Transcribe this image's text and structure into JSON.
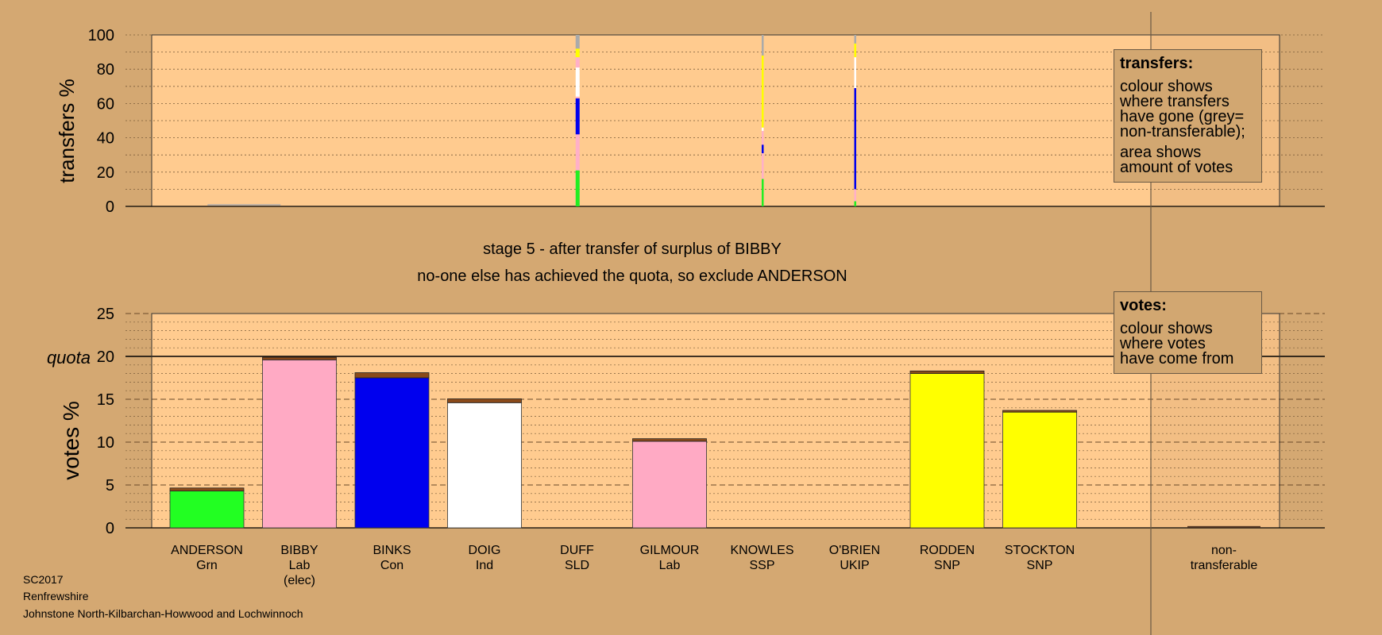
{
  "chart_data": [
    {
      "type": "bar",
      "panel": "transfers",
      "ylabel": "transfers %",
      "ylim": [
        0,
        100
      ],
      "yticks": [
        0,
        20,
        40,
        60,
        80,
        100
      ],
      "grid": "dotted every 10",
      "colors": {
        "Grn": "#22ee22",
        "Lab": "#ffb0c8",
        "Con": "#0000ee",
        "Ind": "#ffffff",
        "SNP": "#ffff00",
        "UKIP": "#9900cc",
        "non-transferable": "#a9a9a9"
      },
      "bars": [
        {
          "x": 0.895,
          "width": 0.045,
          "segments": [
            {
              "color": "#aaaaaa",
              "from": 0,
              "to": 1
            }
          ]
        },
        {
          "x": 4.5,
          "width": 0.03,
          "segments": [
            {
              "color": "#22ee22",
              "from": 0,
              "to": 21
            },
            {
              "color": "#ffb0c8",
              "from": 21,
              "to": 42
            },
            {
              "color": "#0000ee",
              "from": 42,
              "to": 63
            },
            {
              "color": "#ffb0c8",
              "from": 63,
              "to": 64
            },
            {
              "color": "#ffffff",
              "from": 64,
              "to": 81
            },
            {
              "color": "#ffb0c8",
              "from": 81,
              "to": 87
            },
            {
              "color": "#ffff00",
              "from": 87,
              "to": 92
            },
            {
              "color": "#aaaaaa",
              "from": 92,
              "to": 100
            }
          ]
        },
        {
          "x": 6.5,
          "width": 0.012,
          "segments": [
            {
              "color": "#22ee22",
              "from": 0,
              "to": 16
            },
            {
              "color": "#ffb0c8",
              "from": 16,
              "to": 31
            },
            {
              "color": "#0000ee",
              "from": 31,
              "to": 36
            },
            {
              "color": "#ffb0c8",
              "from": 36,
              "to": 44
            },
            {
              "color": "#ffffff",
              "from": 44,
              "to": 46
            },
            {
              "color": "#ffff00",
              "from": 46,
              "to": 88
            },
            {
              "color": "#aaaaaa",
              "from": 88,
              "to": 100
            }
          ]
        },
        {
          "x": 7.5,
          "width": 0.012,
          "segments": [
            {
              "color": "#22ee22",
              "from": 0,
              "to": 3
            },
            {
              "color": "#ffb0c8",
              "from": 3,
              "to": 10
            },
            {
              "color": "#0000ee",
              "from": 10,
              "to": 69
            },
            {
              "color": "#ffffff",
              "from": 69,
              "to": 87
            },
            {
              "color": "#ffff00",
              "from": 87,
              "to": 95
            },
            {
              "color": "#aaaaaa",
              "from": 95,
              "to": 100
            }
          ]
        }
      ]
    },
    {
      "type": "bar",
      "panel": "votes",
      "ylabel": "votes %",
      "ylim": [
        0,
        25
      ],
      "yticks": [
        0,
        5,
        10,
        15,
        20,
        25
      ],
      "quota_label": "quota",
      "quota_value": 20,
      "categories": [
        {
          "name": "ANDERSON",
          "party": "Grn",
          "note": ""
        },
        {
          "name": "BIBBY",
          "party": "Lab",
          "note": "(elec)"
        },
        {
          "name": "BINKS",
          "party": "Con",
          "note": ""
        },
        {
          "name": "DOIG",
          "party": "Ind",
          "note": ""
        },
        {
          "name": "DUFF",
          "party": "SLD",
          "note": ""
        },
        {
          "name": "GILMOUR",
          "party": "Lab",
          "note": ""
        },
        {
          "name": "KNOWLES",
          "party": "SSP",
          "note": ""
        },
        {
          "name": "O'BRIEN",
          "party": "UKIP",
          "note": ""
        },
        {
          "name": "RODDEN",
          "party": "SNP",
          "note": ""
        },
        {
          "name": "STOCKTON",
          "party": "SNP",
          "note": ""
        }
      ],
      "nontransferable_label": "non-\ntransferable",
      "bars": [
        {
          "candidate": "ANDERSON",
          "first": 4.3,
          "transfers": 0.35,
          "color": "#22ff22"
        },
        {
          "candidate": "BIBBY",
          "first": 19.6,
          "transfers": 0.3,
          "color": "#ffaac4"
        },
        {
          "candidate": "BINKS",
          "first": 17.5,
          "transfers": 0.6,
          "color": "#0000ee"
        },
        {
          "candidate": "DOIG",
          "first": 14.6,
          "transfers": 0.45,
          "color": "#ffffff"
        },
        {
          "candidate": "DUFF",
          "first": 0,
          "transfers": 0,
          "color": "#ff9900"
        },
        {
          "candidate": "GILMOUR",
          "first": 10.1,
          "transfers": 0.3,
          "color": "#ffaac4"
        },
        {
          "candidate": "KNOWLES",
          "first": 0,
          "transfers": 0,
          "color": "#ff0000"
        },
        {
          "candidate": "O'BRIEN",
          "first": 0,
          "transfers": 0,
          "color": "#9900cc"
        },
        {
          "candidate": "RODDEN",
          "first": 18.0,
          "transfers": 0.3,
          "color": "#ffff00"
        },
        {
          "candidate": "STOCKTON",
          "first": 13.5,
          "transfers": 0.2,
          "color": "#ffff00"
        }
      ],
      "nontransferable": 0.2
    }
  ],
  "stage_title": "stage 5 - after transfer of surplus of BIBBY",
  "stage_subtitle": "no-one else has achieved the quota, so exclude ANDERSON",
  "legend_transfers": {
    "title": "transfers:",
    "line1": "colour shows\nwhere transfers\nhave gone (grey=\nnon-transferable);",
    "line2": "area shows\namount of votes"
  },
  "legend_votes": {
    "title": "votes:",
    "line1": "colour shows\nwhere votes\nhave come from"
  },
  "footer": {
    "election": "SC2017",
    "council": "Renfrewshire",
    "ward": "Johnstone North-Kilbarchan-Howwood and Lochwinnoch"
  }
}
